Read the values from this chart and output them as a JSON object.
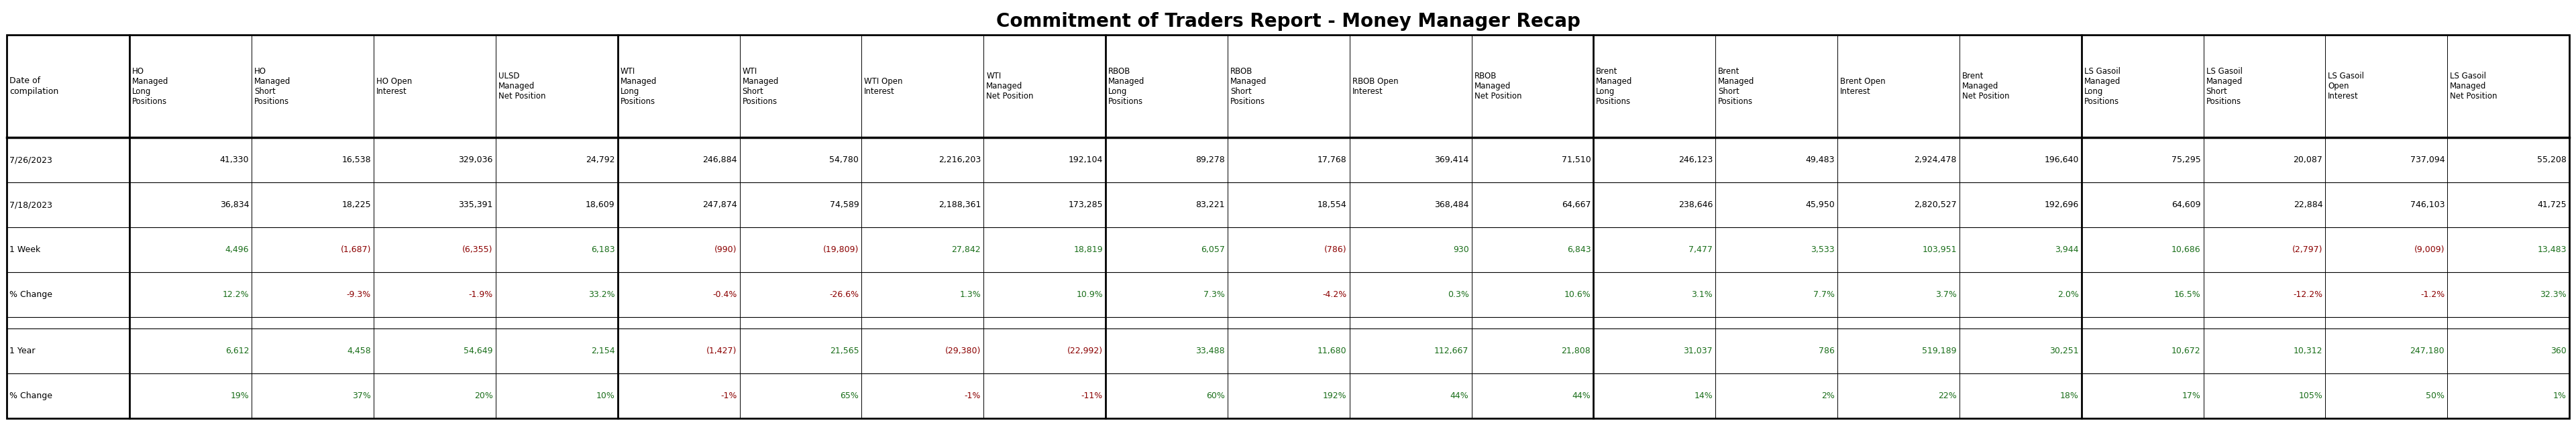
{
  "title": "Commitment of Traders Report - Money Manager Recap",
  "sub_headers": [
    [
      "HO\nManaged\nLong\nPositions",
      "HO\nManaged\nShort\nPositions",
      "HO Open\nInterest",
      "ULSD\nManaged\nNet Position"
    ],
    [
      "WTI\nManaged\nLong\nPositions",
      "WTI\nManaged\nShort\nPositions",
      "WTI Open\nInterest",
      "WTI\nManaged\nNet Position"
    ],
    [
      "RBOB\nManaged\nLong\nPositions",
      "RBOB\nManaged\nShort\nPositions",
      "RBOB Open\nInterest",
      "RBOB\nManaged\nNet Position"
    ],
    [
      "Brent\nManaged\nLong\nPositions",
      "Brent\nManaged\nShort\nPositions",
      "Brent Open\nInterest",
      "Brent\nManaged\nNet Position"
    ],
    [
      "LS Gasoil\nManaged\nLong\nPositions",
      "LS Gasoil\nManaged\nShort\nPositions",
      "LS Gasoil\nOpen\nInterest",
      "LS Gasoil\nManaged\nNet Position"
    ]
  ],
  "row_label_col": "Date of\ncompilation",
  "rows": [
    {
      "key": "7/26/2023",
      "label": "7/26/2023",
      "colored": false,
      "blank": false
    },
    {
      "key": "7/18/2023",
      "label": "7/18/2023",
      "colored": false,
      "blank": false
    },
    {
      "key": "1 Week",
      "label": "1 Week",
      "colored": true,
      "blank": false,
      "color_set": "week"
    },
    {
      "key": "pct_week",
      "label": "% Change",
      "colored": true,
      "blank": false,
      "color_set": "week"
    },
    {
      "key": "blank",
      "label": "",
      "colored": false,
      "blank": true
    },
    {
      "key": "1 Year",
      "label": "1 Year",
      "colored": true,
      "blank": false,
      "color_set": "year"
    },
    {
      "key": "pct_year",
      "label": "% Change",
      "colored": true,
      "blank": false,
      "color_set": "year"
    }
  ],
  "data": {
    "7/26/2023": [
      "41,330",
      "16,538",
      "329,036",
      "24,792",
      "246,884",
      "54,780",
      "2,216,203",
      "192,104",
      "89,278",
      "17,768",
      "369,414",
      "71,510",
      "246,123",
      "49,483",
      "2,924,478",
      "196,640",
      "75,295",
      "20,087",
      "737,094",
      "55,208"
    ],
    "7/18/2023": [
      "36,834",
      "18,225",
      "335,391",
      "18,609",
      "247,874",
      "74,589",
      "2,188,361",
      "173,285",
      "83,221",
      "18,554",
      "368,484",
      "64,667",
      "238,646",
      "45,950",
      "2,820,527",
      "192,696",
      "64,609",
      "22,884",
      "746,103",
      "41,725"
    ],
    "1 Week": [
      "4,496",
      "(1,687)",
      "(6,355)",
      "6,183",
      "(990)",
      "(19,809)",
      "27,842",
      "18,819",
      "6,057",
      "(786)",
      "930",
      "6,843",
      "7,477",
      "3,533",
      "103,951",
      "3,944",
      "10,686",
      "(2,797)",
      "(9,009)",
      "13,483"
    ],
    "pct_week": [
      "12.2%",
      "-9.3%",
      "-1.9%",
      "33.2%",
      "-0.4%",
      "-26.6%",
      "1.3%",
      "10.9%",
      "7.3%",
      "-4.2%",
      "0.3%",
      "10.6%",
      "3.1%",
      "7.7%",
      "3.7%",
      "2.0%",
      "16.5%",
      "-12.2%",
      "-1.2%",
      "32.3%"
    ],
    "1 Year": [
      "6,612",
      "4,458",
      "54,649",
      "2,154",
      "(1,427)",
      "21,565",
      "(29,380)",
      "(22,992)",
      "33,488",
      "11,680",
      "112,667",
      "21,808",
      "31,037",
      "786",
      "519,189",
      "30,251",
      "10,672",
      "10,312",
      "247,180",
      "360"
    ],
    "pct_year": [
      "19%",
      "37%",
      "20%",
      "10%",
      "-1%",
      "65%",
      "-1%",
      "-11%",
      "60%",
      "192%",
      "44%",
      "44%",
      "14%",
      "2%",
      "22%",
      "18%",
      "17%",
      "105%",
      "50%",
      "1%"
    ]
  },
  "cell_colors": {
    "1 Week": [
      "#b7e1b8",
      "#f4b8be",
      "#f4b8be",
      "#b7e1b8",
      "#f4b8be",
      "#f4b8be",
      "#b7e1b8",
      "#b7e1b8",
      "#b7e1b8",
      "#f4b8be",
      "#b7e1b8",
      "#b7e1b8",
      "#b7e1b8",
      "#b7e1b8",
      "#b7e1b8",
      "#b7e1b8",
      "#b7e1b8",
      "#f4b8be",
      "#f4b8be",
      "#b7e1b8"
    ],
    "pct_week": [
      "#b7e1b8",
      "#f4b8be",
      "#f4b8be",
      "#b7e1b8",
      "#f4b8be",
      "#f4b8be",
      "#b7e1b8",
      "#b7e1b8",
      "#b7e1b8",
      "#f4b8be",
      "#b7e1b8",
      "#b7e1b8",
      "#b7e1b8",
      "#b7e1b8",
      "#b7e1b8",
      "#b7e1b8",
      "#b7e1b8",
      "#f4b8be",
      "#f4b8be",
      "#b7e1b8"
    ],
    "1 Year": [
      "#b7e1b8",
      "#b7e1b8",
      "#b7e1b8",
      "#b7e1b8",
      "#f4b8be",
      "#b7e1b8",
      "#f4b8be",
      "#f4b8be",
      "#b7e1b8",
      "#b7e1b8",
      "#b7e1b8",
      "#b7e1b8",
      "#b7e1b8",
      "#b7e1b8",
      "#b7e1b8",
      "#b7e1b8",
      "#b7e1b8",
      "#b7e1b8",
      "#b7e1b8",
      "#b7e1b8"
    ],
    "pct_year": [
      "#b7e1b8",
      "#b7e1b8",
      "#b7e1b8",
      "#b7e1b8",
      "#f4b8be",
      "#b7e1b8",
      "#f4b8be",
      "#f4b8be",
      "#b7e1b8",
      "#b7e1b8",
      "#b7e1b8",
      "#b7e1b8",
      "#b7e1b8",
      "#b7e1b8",
      "#b7e1b8",
      "#b7e1b8",
      "#b7e1b8",
      "#b7e1b8",
      "#b7e1b8",
      "#b7e1b8"
    ]
  },
  "text_colors": {
    "week": [
      "#1a6e1a",
      "#8b0000",
      "#8b0000",
      "#1a6e1a",
      "#8b0000",
      "#8b0000",
      "#1a6e1a",
      "#1a6e1a",
      "#1a6e1a",
      "#8b0000",
      "#1a6e1a",
      "#1a6e1a",
      "#1a6e1a",
      "#1a6e1a",
      "#1a6e1a",
      "#1a6e1a",
      "#1a6e1a",
      "#8b0000",
      "#8b0000",
      "#1a6e1a"
    ],
    "year": [
      "#1a6e1a",
      "#1a6e1a",
      "#1a6e1a",
      "#1a6e1a",
      "#8b0000",
      "#1a6e1a",
      "#8b0000",
      "#8b0000",
      "#1a6e1a",
      "#1a6e1a",
      "#1a6e1a",
      "#1a6e1a",
      "#1a6e1a",
      "#1a6e1a",
      "#1a6e1a",
      "#1a6e1a",
      "#1a6e1a",
      "#1a6e1a",
      "#1a6e1a",
      "#1a6e1a"
    ]
  }
}
